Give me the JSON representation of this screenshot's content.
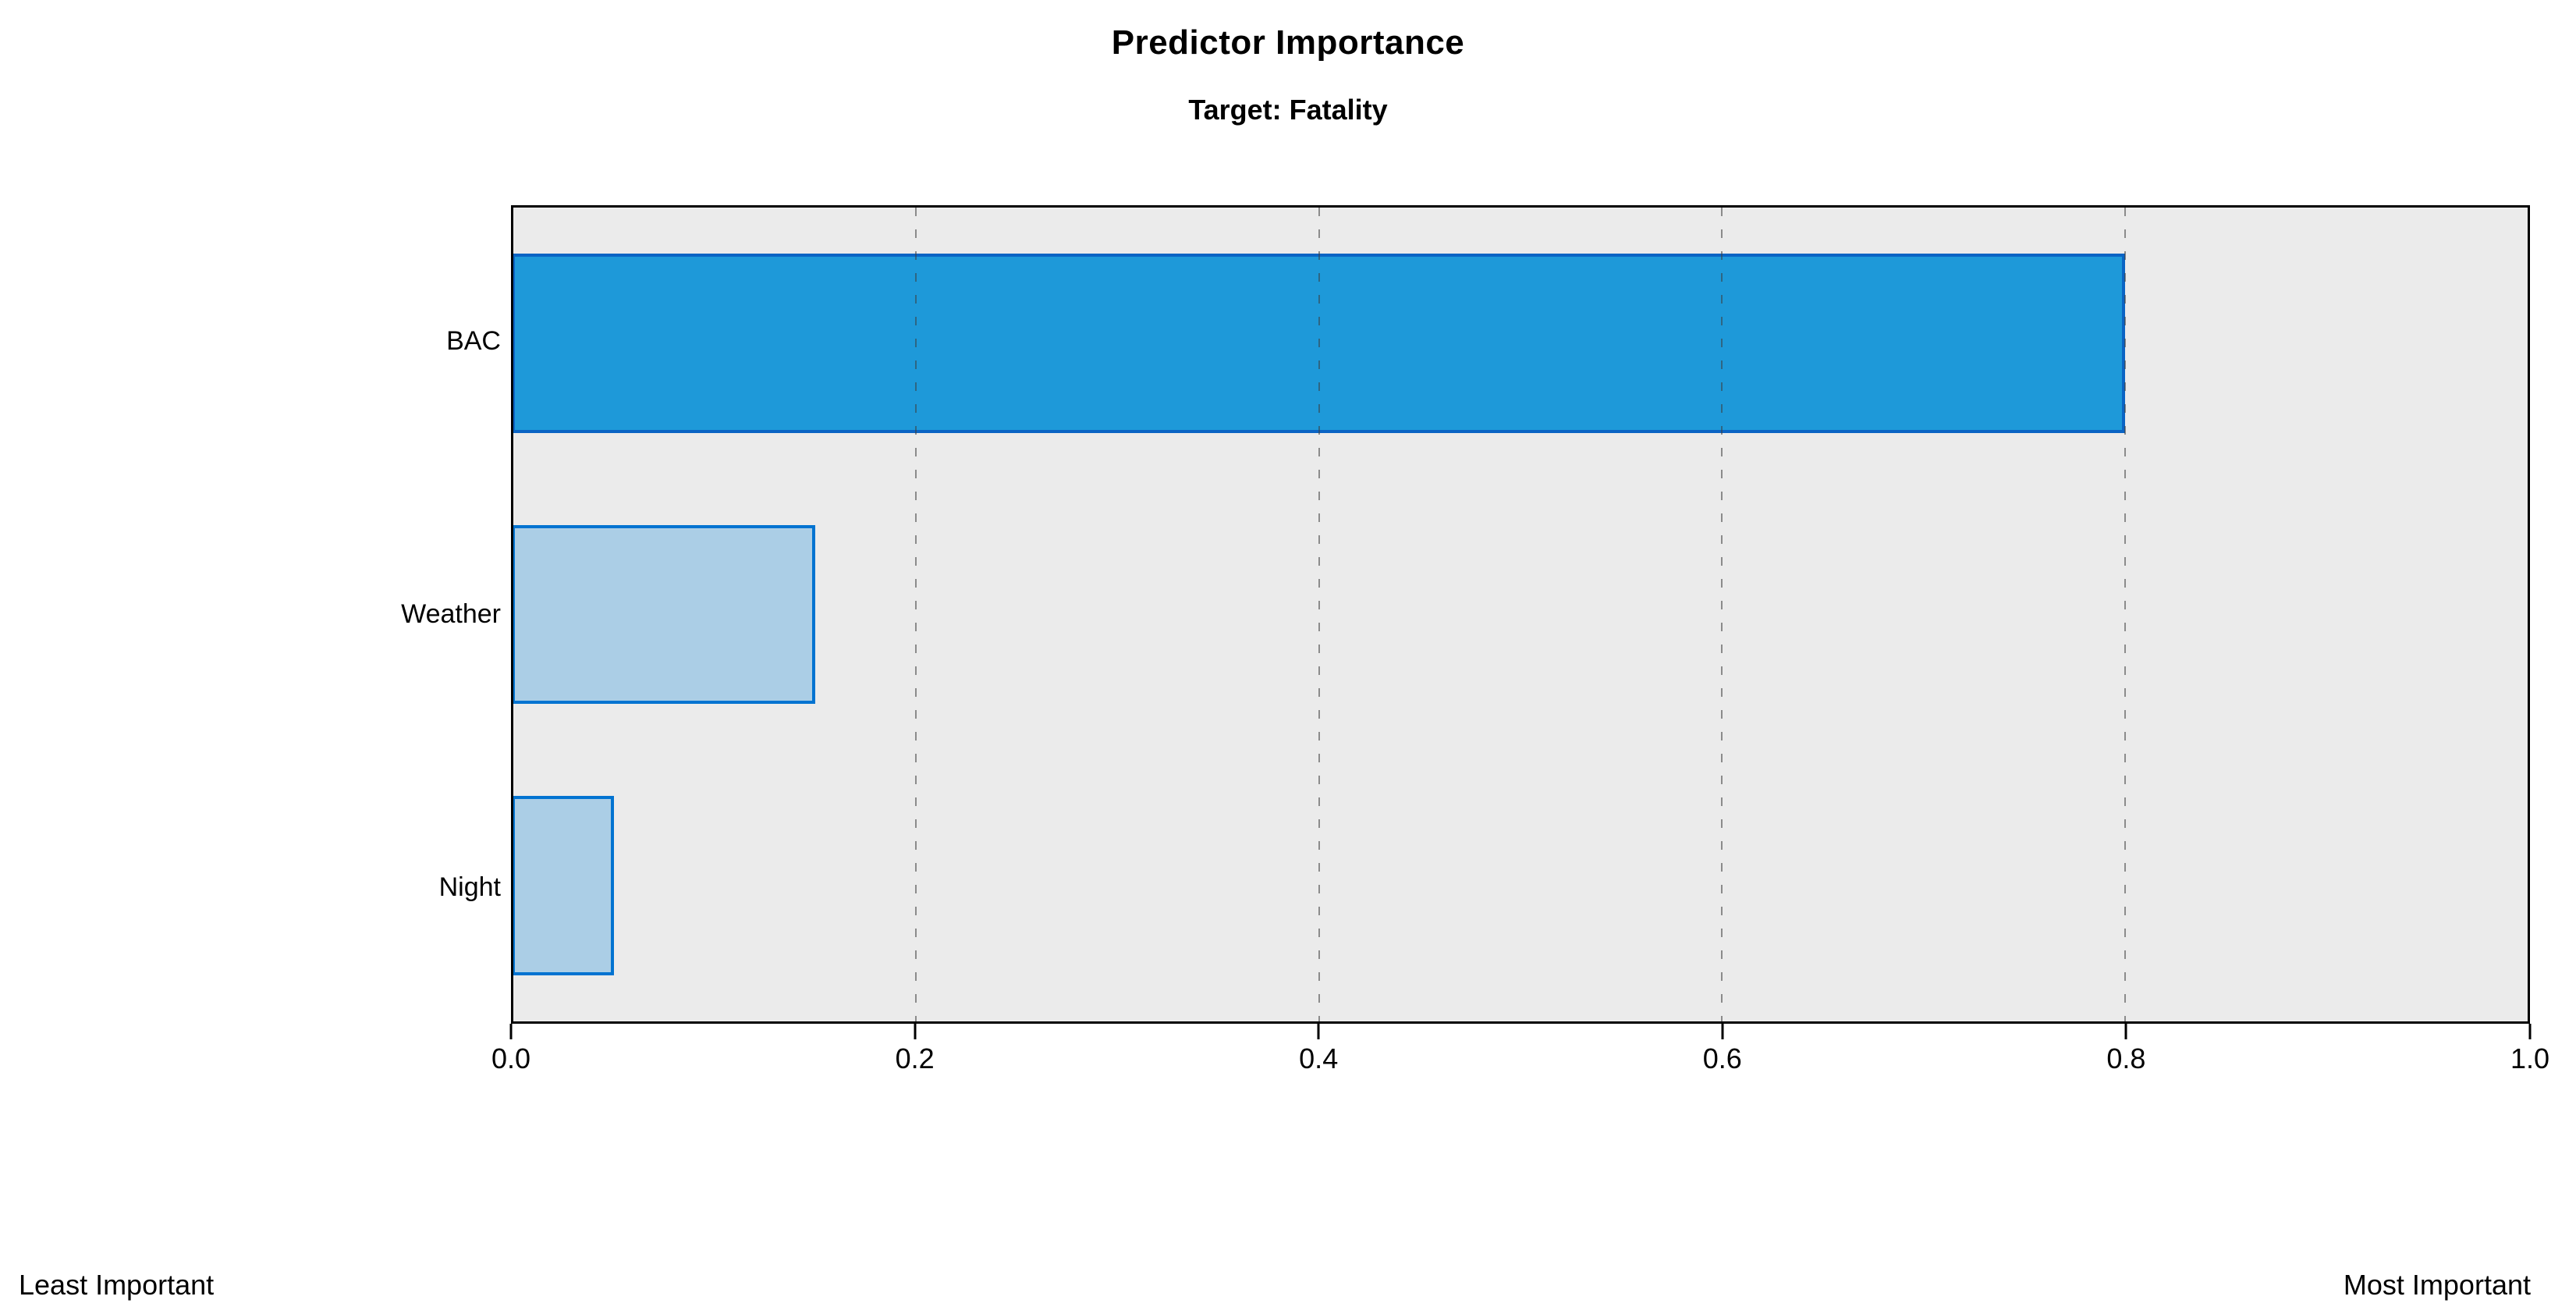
{
  "header": {
    "title": "Predictor Importance",
    "subtitle": "Target: Fatality"
  },
  "chart_data": {
    "type": "bar",
    "orientation": "horizontal",
    "title": "Predictor Importance",
    "subtitle": "Target: Fatality",
    "categories": [
      "BAC",
      "Weather",
      "Night"
    ],
    "values": [
      0.8,
      0.15,
      0.05
    ],
    "xlabel": "",
    "ylabel": "",
    "xlim": [
      0.0,
      1.0
    ],
    "x_ticks": [
      "0.0",
      "0.2",
      "0.4",
      "0.6",
      "0.8",
      "1.0"
    ],
    "gridlines": {
      "axis": "x",
      "positions": [
        0.2,
        0.4,
        0.6,
        0.8
      ],
      "style": "dashed"
    },
    "legend": "none",
    "bar_styles": [
      {
        "fill": "#1E99D9",
        "border": "#0A64C4"
      },
      {
        "fill": "#ABCEE6",
        "border": "#0073D1"
      },
      {
        "fill": "#ABCEE6",
        "border": "#0073D1"
      }
    ]
  },
  "footer": {
    "left_label": "Least Important",
    "right_label": "Most Important"
  },
  "colors": {
    "plotBg": "#EBEBEB",
    "plotBorder": "#000000",
    "gridline": "rgba(60,60,60,0.55)",
    "barDarkFill": "#1E99D9",
    "barDarkBorder": "#0A64C4",
    "barLightFill": "#ABCEE6",
    "barLightBorder": "#0073D1"
  }
}
